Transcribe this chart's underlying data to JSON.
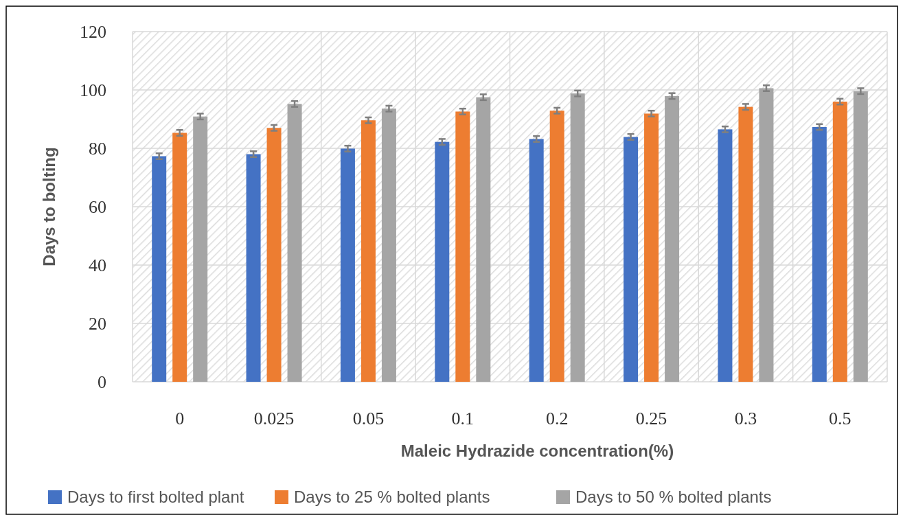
{
  "chart_data": {
    "type": "bar",
    "xlabel": "Maleic Hydrazide concentration(%)",
    "ylabel": "Days to bolting",
    "categories": [
      "0",
      "0.025",
      "0.05",
      "0.1",
      "0.2",
      "0.25",
      "0.3",
      "0.5"
    ],
    "series": [
      {
        "name": "Days to first bolted plant",
        "color": "#4472c4",
        "values": [
          77.3,
          78.0,
          79.9,
          82.2,
          83.2,
          83.9,
          86.5,
          87.3
        ],
        "errors": [
          1,
          1,
          1,
          1,
          1,
          1,
          1,
          1
        ]
      },
      {
        "name": "Days to 25 % bolted plants",
        "color": "#ed7d31",
        "values": [
          85.3,
          87.0,
          89.6,
          92.6,
          92.9,
          91.9,
          94.2,
          96.0
        ],
        "errors": [
          1,
          1,
          1,
          1,
          1,
          1,
          1,
          1
        ]
      },
      {
        "name": "Days to 50 % bolted plants",
        "color": "#a5a5a5",
        "values": [
          90.9,
          95.2,
          93.6,
          97.5,
          98.8,
          97.9,
          100.6,
          99.6
        ],
        "errors": [
          1,
          1,
          1,
          1,
          1,
          1,
          1,
          1
        ]
      }
    ],
    "ylim": [
      0,
      120
    ],
    "yticks": [
      0,
      20,
      40,
      60,
      80,
      100,
      120
    ],
    "grid": true,
    "legend": "bottom"
  }
}
